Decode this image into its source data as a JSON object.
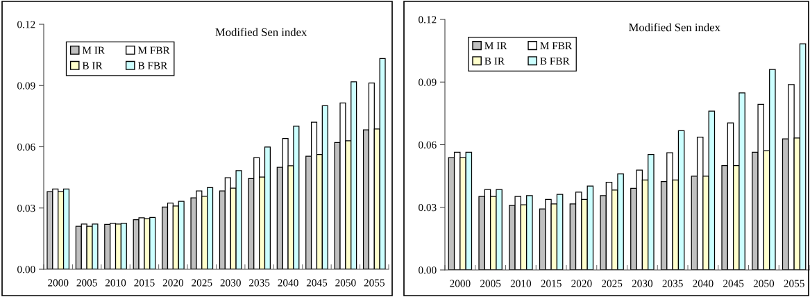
{
  "chart_data": [
    {
      "type": "bar",
      "title": "Modified Sen index",
      "categories": [
        "2000",
        "2005",
        "2010",
        "2015",
        "2020",
        "2025",
        "2030",
        "2035",
        "2040",
        "2045",
        "2050",
        "2055"
      ],
      "ylim": [
        0,
        0.12
      ],
      "yticks": [
        {
          "value": 0,
          "label": "0.00"
        },
        {
          "value": 0.03,
          "label": "0.03"
        },
        {
          "value": 0.06,
          "label": "0.06"
        },
        {
          "value": 0.09,
          "label": "0.09"
        },
        {
          "value": 0.12,
          "label": "0.12"
        }
      ],
      "legend": "top left",
      "grid": false,
      "series": [
        {
          "name": "M IR",
          "color": "#c0c0c0",
          "values": [
            0.038,
            0.021,
            0.022,
            0.0243,
            0.0305,
            0.035,
            0.0384,
            0.0444,
            0.0499,
            0.0554,
            0.0621,
            0.0683
          ]
        },
        {
          "name": "M FBR",
          "color": "#ffffff",
          "values": [
            0.0393,
            0.0221,
            0.0225,
            0.0252,
            0.0324,
            0.0384,
            0.0448,
            0.0547,
            0.064,
            0.072,
            0.0815,
            0.0912
          ]
        },
        {
          "name": "B IR",
          "color": "#ffffcc",
          "values": [
            0.038,
            0.021,
            0.0221,
            0.0248,
            0.031,
            0.0357,
            0.0397,
            0.0452,
            0.0507,
            0.0562,
            0.0629,
            0.0687
          ]
        },
        {
          "name": "B FBR",
          "color": "#ccffff",
          "values": [
            0.0393,
            0.0221,
            0.0225,
            0.0254,
            0.0333,
            0.04,
            0.0483,
            0.0599,
            0.0701,
            0.0801,
            0.0918,
            0.1032
          ]
        }
      ]
    },
    {
      "type": "bar",
      "title": "Modified Sen index",
      "categories": [
        "2000",
        "2005",
        "2010",
        "2015",
        "2020",
        "2025",
        "2030",
        "2035",
        "2040",
        "2045",
        "2050",
        "2055"
      ],
      "ylim": [
        0,
        0.12
      ],
      "yticks": [
        {
          "value": 0,
          "label": "0.00"
        },
        {
          "value": 0.03,
          "label": "0.03"
        },
        {
          "value": 0.06,
          "label": "0.06"
        },
        {
          "value": 0.09,
          "label": "0.09"
        },
        {
          "value": 0.12,
          "label": "0.12"
        }
      ],
      "legend": "top left",
      "grid": false,
      "series": [
        {
          "name": "M IR",
          "color": "#c0c0c0",
          "values": [
            0.0538,
            0.0352,
            0.0309,
            0.0292,
            0.0316,
            0.0356,
            0.0391,
            0.0423,
            0.0449,
            0.05,
            0.0564,
            0.0628
          ]
        },
        {
          "name": "M FBR",
          "color": "#ffffff",
          "values": [
            0.0564,
            0.0385,
            0.0352,
            0.0338,
            0.0373,
            0.042,
            0.0478,
            0.0561,
            0.0636,
            0.0704,
            0.0793,
            0.0888
          ]
        },
        {
          "name": "B IR",
          "color": "#ffffcc",
          "values": [
            0.0538,
            0.0352,
            0.0312,
            0.0316,
            0.0338,
            0.0383,
            0.0431,
            0.0431,
            0.0449,
            0.05,
            0.0571,
            0.0632
          ]
        },
        {
          "name": "B FBR",
          "color": "#ccffff",
          "values": [
            0.0564,
            0.0385,
            0.0356,
            0.0362,
            0.0402,
            0.046,
            0.0553,
            0.0667,
            0.0761,
            0.0848,
            0.096,
            0.1083
          ]
        }
      ]
    }
  ]
}
